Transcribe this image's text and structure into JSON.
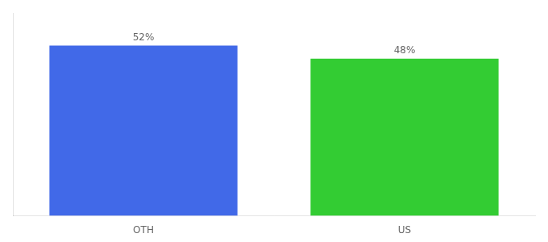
{
  "chart_data": {
    "type": "bar",
    "categories": [
      "OTH",
      "US"
    ],
    "values": [
      52,
      48
    ],
    "value_labels": [
      "52%",
      "48%"
    ],
    "data_labels": true,
    "colors": [
      "#4169e8",
      "#33cc33"
    ],
    "ylim": [
      0,
      62
    ],
    "grid": false,
    "tick_labels": "x"
  }
}
